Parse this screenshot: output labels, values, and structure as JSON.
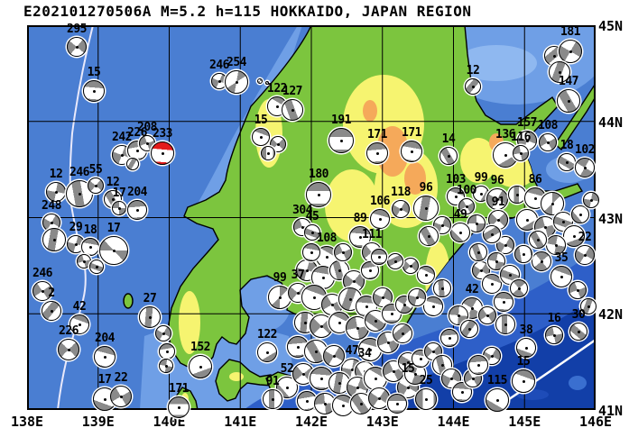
{
  "title": "E202101270506A M=5.2 h=115 HOKKAIDO, JAPAN REGION",
  "axes": {
    "x_tick_labels": [
      "138E",
      "139E",
      "140E",
      "141E",
      "142E",
      "143E",
      "144E",
      "145E",
      "146E"
    ],
    "y_tick_labels": [
      "45N",
      "44N",
      "43N",
      "42N",
      "41N"
    ]
  },
  "colors": {
    "sea": "#4a7ed2",
    "sea_light": "#6f9fe6",
    "sea_lighter": "#8fb8f0",
    "sea_middark": "#2e5fc8",
    "sea_deep": "#123fa8",
    "land": "#7cc53e",
    "land_high": "#f6f470",
    "land_peak": "#f5a95a",
    "ball_gray": "#8a8a8a",
    "ball_white": "#ffffff",
    "ball_red": "#e31b1b",
    "boundary_line": "#e9e9fb"
  },
  "balls_schema": [
    "x",
    "y",
    "radius",
    "pattern(q=quadrant,t=top-cap,b=band,e=edge-crescents)",
    "angle_deg",
    "depth_label",
    "color_flag"
  ],
  "balls": [
    [
      85,
      52,
      11,
      "q",
      40,
      "295"
    ],
    [
      104,
      101,
      12,
      "t",
      185,
      "15"
    ],
    [
      135,
      172,
      11,
      "q",
      20,
      "242"
    ],
    [
      152,
      167,
      11,
      "t",
      170,
      "226"
    ],
    [
      163,
      159,
      9,
      "q",
      70,
      "208"
    ],
    [
      147,
      182,
      7,
      "b",
      120
    ],
    [
      62,
      213,
      11,
      "q",
      10,
      "12"
    ],
    [
      88,
      215,
      15,
      "b",
      80,
      "246"
    ],
    [
      106,
      206,
      9,
      "q",
      40,
      "55"
    ],
    [
      125,
      221,
      10,
      "b",
      60,
      "12"
    ],
    [
      132,
      231,
      8,
      "q",
      90,
      "17"
    ],
    [
      152,
      233,
      11,
      "t",
      175,
      "204"
    ],
    [
      57,
      247,
      10,
      "q",
      30,
      "248"
    ],
    [
      60,
      266,
      13,
      "b",
      100
    ],
    [
      84,
      271,
      10,
      "q",
      15,
      "29"
    ],
    [
      100,
      274,
      10,
      "t",
      190,
      "18"
    ],
    [
      93,
      290,
      8,
      "q",
      75
    ],
    [
      107,
      296,
      8,
      "b",
      20
    ],
    [
      126,
      278,
      16,
      "e",
      90,
      "17"
    ],
    [
      47,
      323,
      11,
      "q",
      55,
      "246"
    ],
    [
      57,
      345,
      11,
      "b",
      130,
      "2"
    ],
    [
      88,
      360,
      11,
      "t",
      200,
      "42"
    ],
    [
      76,
      388,
      12,
      "q",
      45,
      "226"
    ],
    [
      116,
      396,
      12,
      "t",
      195,
      "204"
    ],
    [
      166,
      352,
      12,
      "b",
      95,
      "27"
    ],
    [
      181,
      370,
      9,
      "q",
      30
    ],
    [
      185,
      390,
      9,
      "t",
      170
    ],
    [
      184,
      406,
      8,
      "q",
      100
    ],
    [
      222,
      407,
      13,
      "t",
      340,
      "152"
    ],
    [
      116,
      443,
      13,
      "t",
      20,
      "17"
    ],
    [
      134,
      440,
      12,
      "q",
      60,
      "22"
    ],
    [
      198,
      452,
      12,
      "t",
      180,
      "171"
    ],
    [
      243,
      90,
      9,
      "q",
      25,
      "246"
    ],
    [
      262,
      91,
      13,
      "e",
      10,
      "254"
    ],
    [
      288,
      90,
      3,
      "q",
      0
    ],
    [
      296,
      92,
      2,
      "q",
      0
    ],
    [
      307,
      118,
      11,
      "t",
      210,
      "122"
    ],
    [
      324,
      122,
      12,
      "b",
      70,
      "127"
    ],
    [
      289,
      152,
      10,
      "t",
      200,
      "15"
    ],
    [
      308,
      160,
      9,
      "q",
      45
    ],
    [
      297,
      170,
      8,
      "t",
      90
    ],
    [
      378,
      156,
      14,
      "t",
      180,
      "191"
    ],
    [
      418,
      170,
      12,
      "t",
      175,
      "171"
    ],
    [
      456,
      168,
      12,
      "t",
      190,
      "171"
    ],
    [
      524,
      96,
      9,
      "b",
      130,
      "12"
    ],
    [
      497,
      173,
      10,
      "b",
      60,
      "14"
    ],
    [
      353,
      216,
      14,
      "t",
      180,
      "180"
    ],
    [
      614,
      62,
      11,
      "b",
      140
    ],
    [
      632,
      57,
      13,
      "q",
      30,
      "181"
    ],
    [
      620,
      80,
      12,
      "b",
      110
    ],
    [
      630,
      112,
      13,
      "b",
      60,
      "147"
    ],
    [
      560,
      172,
      14,
      "t",
      330,
      "136"
    ],
    [
      584,
      156,
      11,
      "q",
      20,
      "157"
    ],
    [
      607,
      158,
      10,
      "q",
      60,
      "108"
    ],
    [
      577,
      170,
      9,
      "q",
      80,
      "116"
    ],
    [
      628,
      180,
      10,
      "b",
      30,
      "18"
    ],
    [
      648,
      186,
      11,
      "q",
      120,
      "102"
    ],
    [
      505,
      218,
      10,
      "t",
      200,
      "103"
    ],
    [
      517,
      229,
      9,
      "q",
      60,
      "100"
    ],
    [
      533,
      215,
      9,
      "t",
      300,
      "99"
    ],
    [
      551,
      221,
      12,
      "q",
      30,
      "96"
    ],
    [
      573,
      216,
      10,
      "b",
      90
    ],
    [
      593,
      220,
      12,
      "t",
      195,
      "86"
    ],
    [
      612,
      226,
      13,
      "e",
      0
    ],
    [
      552,
      244,
      11,
      "q",
      45,
      "91"
    ],
    [
      584,
      244,
      12,
      "t",
      330
    ],
    [
      604,
      252,
      12,
      "q",
      75
    ],
    [
      624,
      246,
      11,
      "b",
      20
    ],
    [
      643,
      238,
      10,
      "t",
      50
    ],
    [
      655,
      222,
      9,
      "q",
      10
    ],
    [
      636,
      262,
      12,
      "t",
      340
    ],
    [
      616,
      272,
      11,
      "q",
      100
    ],
    [
      596,
      266,
      10,
      "b",
      60
    ],
    [
      648,
      283,
      11,
      "q",
      30,
      "22"
    ],
    [
      622,
      307,
      12,
      "t",
      200,
      "35"
    ],
    [
      640,
      322,
      10,
      "q",
      70
    ],
    [
      652,
      340,
      9,
      "b",
      110
    ],
    [
      600,
      290,
      11,
      "q",
      140
    ],
    [
      580,
      282,
      10,
      "t",
      80
    ],
    [
      560,
      272,
      10,
      "q",
      30
    ],
    [
      545,
      260,
      10,
      "b",
      150
    ],
    [
      528,
      248,
      10,
      "q",
      90
    ],
    [
      510,
      258,
      11,
      "t",
      45,
      "49"
    ],
    [
      490,
      250,
      10,
      "q",
      20
    ],
    [
      475,
      262,
      11,
      "b",
      60
    ],
    [
      444,
      232,
      10,
      "q",
      30,
      "118"
    ],
    [
      421,
      243,
      11,
      "t",
      195,
      "106"
    ],
    [
      472,
      231,
      14,
      "b",
      100,
      "96"
    ],
    [
      399,
      263,
      12,
      "t",
      185,
      "89"
    ],
    [
      412,
      280,
      11,
      "q",
      50,
      "111"
    ],
    [
      362,
      285,
      12,
      "t",
      210,
      "108"
    ],
    [
      335,
      252,
      10,
      "q",
      70,
      "304"
    ],
    [
      346,
      258,
      9,
      "b",
      20,
      "45"
    ],
    [
      310,
      330,
      13,
      "e",
      0,
      "99"
    ],
    [
      330,
      325,
      11,
      "q",
      40,
      "37"
    ],
    [
      296,
      391,
      11,
      "t",
      330,
      "122"
    ],
    [
      318,
      430,
      12,
      "t",
      50,
      "52"
    ],
    [
      302,
      443,
      11,
      "b",
      90,
      "91"
    ],
    [
      390,
      410,
      12,
      "q",
      10,
      "47"
    ],
    [
      404,
      412,
      11,
      "t",
      60,
      "34"
    ],
    [
      452,
      430,
      12,
      "q",
      30,
      "15"
    ],
    [
      472,
      443,
      12,
      "t",
      90,
      "25"
    ],
    [
      523,
      342,
      12,
      "q",
      120,
      "42"
    ],
    [
      641,
      368,
      10,
      "b",
      40,
      "30"
    ],
    [
      614,
      372,
      10,
      "q",
      80,
      "16"
    ],
    [
      583,
      386,
      11,
      "t",
      20,
      "38"
    ],
    [
      580,
      423,
      13,
      "t",
      200,
      "15"
    ],
    [
      551,
      444,
      13,
      "t",
      30,
      "115"
    ],
    [
      340,
      300,
      12,
      "q",
      15
    ],
    [
      358,
      308,
      13,
      "t",
      190
    ],
    [
      376,
      300,
      11,
      "b",
      75
    ],
    [
      392,
      312,
      12,
      "q",
      40
    ],
    [
      410,
      300,
      10,
      "t",
      170
    ],
    [
      348,
      330,
      14,
      "t",
      200
    ],
    [
      368,
      338,
      12,
      "q",
      60
    ],
    [
      388,
      332,
      13,
      "b",
      110
    ],
    [
      406,
      340,
      12,
      "t",
      185
    ],
    [
      424,
      330,
      11,
      "q",
      25
    ],
    [
      338,
      358,
      12,
      "b",
      95
    ],
    [
      356,
      362,
      13,
      "q",
      45
    ],
    [
      376,
      358,
      12,
      "t",
      205
    ],
    [
      396,
      364,
      13,
      "q",
      80
    ],
    [
      416,
      356,
      12,
      "b",
      35
    ],
    [
      434,
      348,
      11,
      "t",
      180
    ],
    [
      448,
      338,
      10,
      "q",
      120
    ],
    [
      330,
      385,
      12,
      "t",
      175
    ],
    [
      350,
      390,
      13,
      "b",
      60
    ],
    [
      370,
      395,
      12,
      "q",
      30
    ],
    [
      410,
      388,
      13,
      "t",
      195
    ],
    [
      430,
      380,
      12,
      "q",
      70
    ],
    [
      446,
      370,
      11,
      "b",
      140
    ],
    [
      336,
      415,
      12,
      "q",
      50
    ],
    [
      356,
      420,
      13,
      "t",
      185
    ],
    [
      376,
      425,
      12,
      "b",
      100
    ],
    [
      396,
      430,
      12,
      "q",
      20
    ],
    [
      416,
      420,
      13,
      "t",
      210
    ],
    [
      436,
      412,
      12,
      "q",
      65
    ],
    [
      452,
      402,
      11,
      "b",
      30
    ],
    [
      340,
      445,
      11,
      "t",
      170
    ],
    [
      360,
      448,
      12,
      "q",
      85
    ],
    [
      380,
      450,
      12,
      "t",
      200
    ],
    [
      400,
      448,
      12,
      "b",
      55
    ],
    [
      420,
      442,
      12,
      "q",
      35
    ],
    [
      440,
      448,
      11,
      "t",
      180
    ],
    [
      460,
      415,
      12,
      "q",
      110
    ],
    [
      466,
      398,
      10,
      "t",
      190
    ],
    [
      480,
      390,
      10,
      "q",
      45
    ],
    [
      490,
      405,
      11,
      "b",
      75
    ],
    [
      500,
      420,
      11,
      "q",
      25
    ],
    [
      512,
      435,
      11,
      "t",
      185
    ],
    [
      524,
      420,
      10,
      "q",
      60
    ],
    [
      498,
      375,
      10,
      "t",
      175
    ],
    [
      508,
      350,
      11,
      "q",
      95
    ],
    [
      520,
      365,
      10,
      "b",
      125
    ],
    [
      480,
      340,
      11,
      "t",
      195
    ],
    [
      462,
      330,
      10,
      "q",
      15
    ],
    [
      490,
      320,
      10,
      "b",
      85
    ],
    [
      472,
      305,
      10,
      "t",
      205
    ],
    [
      455,
      295,
      9,
      "q",
      45
    ],
    [
      438,
      290,
      9,
      "b",
      155
    ],
    [
      420,
      285,
      9,
      "t",
      180
    ],
    [
      380,
      280,
      10,
      "q",
      65
    ],
    [
      345,
      280,
      10,
      "t",
      190
    ],
    [
      533,
      300,
      10,
      "q",
      35
    ],
    [
      545,
      315,
      11,
      "t",
      200
    ],
    [
      530,
      280,
      10,
      "b",
      70
    ],
    [
      550,
      290,
      10,
      "q",
      100
    ],
    [
      565,
      305,
      11,
      "b",
      20
    ],
    [
      575,
      320,
      10,
      "q",
      140
    ],
    [
      558,
      335,
      11,
      "t",
      185
    ],
    [
      540,
      350,
      10,
      "q",
      55
    ],
    [
      560,
      360,
      11,
      "b",
      90
    ],
    [
      545,
      395,
      10,
      "q",
      30
    ],
    [
      530,
      405,
      11,
      "t",
      175
    ],
    [
      180,
      170,
      13,
      "t",
      185,
      "233",
      "red"
    ]
  ]
}
